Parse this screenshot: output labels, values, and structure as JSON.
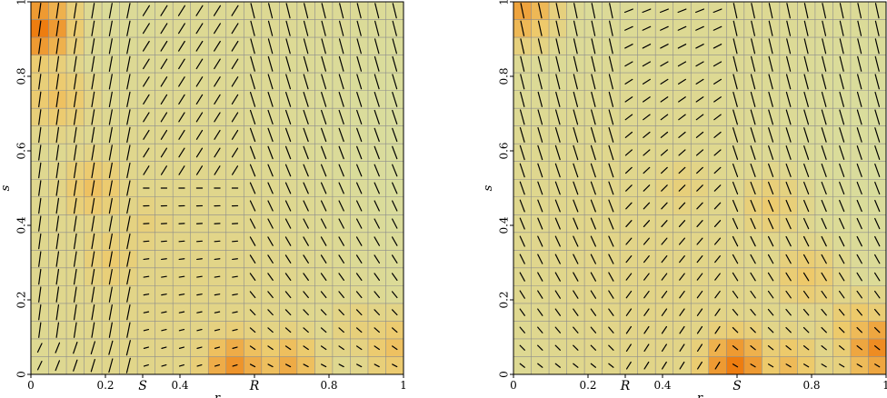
{
  "colors": {
    "low": "#d8deA0",
    "mid": "#eec96a",
    "high": "#ee7d10",
    "grid": "#8c8c8c",
    "stroke": "#000000"
  },
  "chart_data": [
    {
      "type": "heatmap",
      "subtype": "field",
      "title": "",
      "xlabel": "r",
      "ylabel": "s",
      "xlim": [
        0,
        1
      ],
      "ylim": [
        0,
        1
      ],
      "grid": true,
      "n_cells": 21,
      "xticks": [
        "0",
        "0.2",
        "0.4",
        "0.8",
        "1"
      ],
      "xtick_values": [
        0,
        0.2,
        0.4,
        0.8,
        1
      ],
      "yticks": [
        "0",
        "0.2",
        "0.4",
        "0.6",
        "0.8",
        "1"
      ],
      "ytick_values": [
        0,
        0.2,
        0.4,
        0.6,
        0.8,
        1
      ],
      "markers": [
        {
          "label": "S",
          "x": 0.3
        },
        {
          "label": "R",
          "x": 0.6
        }
      ],
      "hot_spots": [
        {
          "r": 0.0,
          "s": 0.95,
          "v": 1.0
        },
        {
          "r": 0.05,
          "s": 0.75,
          "v": 0.55
        },
        {
          "r": 0.15,
          "s": 0.5,
          "v": 0.55
        },
        {
          "r": 0.2,
          "s": 0.3,
          "v": 0.45
        },
        {
          "r": 0.3,
          "s": 0.4,
          "v": 0.35
        },
        {
          "r": 0.45,
          "s": 0.25,
          "v": 0.25
        },
        {
          "r": 0.9,
          "s": 0.1,
          "v": 0.35
        },
        {
          "r": 1.0,
          "s": 0.05,
          "v": 0.55
        },
        {
          "r": 0.55,
          "s": 0.0,
          "v": 0.85
        },
        {
          "r": 0.7,
          "s": 0.0,
          "v": 0.7
        }
      ],
      "field_boundaries": [
        0.3,
        0.6
      ]
    },
    {
      "type": "heatmap",
      "subtype": "field",
      "title": "",
      "xlabel": "r",
      "ylabel": "s",
      "xlim": [
        0,
        1
      ],
      "ylim": [
        0,
        1
      ],
      "grid": true,
      "n_cells": 21,
      "xticks": [
        "0",
        "0.2",
        "0.4",
        "0.8",
        "1"
      ],
      "xtick_values": [
        0,
        0.2,
        0.4,
        0.8,
        1
      ],
      "yticks": [
        "0",
        "0.2",
        "0.4",
        "0.6",
        "0.8",
        "1"
      ],
      "ytick_values": [
        0,
        0.2,
        0.4,
        0.6,
        0.8,
        1
      ],
      "markers": [
        {
          "label": "R",
          "x": 0.3
        },
        {
          "label": "S",
          "x": 0.6
        }
      ],
      "hot_spots": [
        {
          "r": 0.0,
          "s": 1.0,
          "v": 0.75
        },
        {
          "r": 0.45,
          "s": 0.5,
          "v": 0.35
        },
        {
          "r": 0.7,
          "s": 0.45,
          "v": 0.45
        },
        {
          "r": 0.8,
          "s": 0.25,
          "v": 0.5
        },
        {
          "r": 0.95,
          "s": 0.1,
          "v": 0.6
        },
        {
          "r": 1.0,
          "s": 0.05,
          "v": 0.9
        },
        {
          "r": 0.6,
          "s": 0.0,
          "v": 1.0
        },
        {
          "r": 0.75,
          "s": 0.0,
          "v": 0.6
        }
      ],
      "field_boundaries": [
        0.3,
        0.6
      ]
    }
  ]
}
